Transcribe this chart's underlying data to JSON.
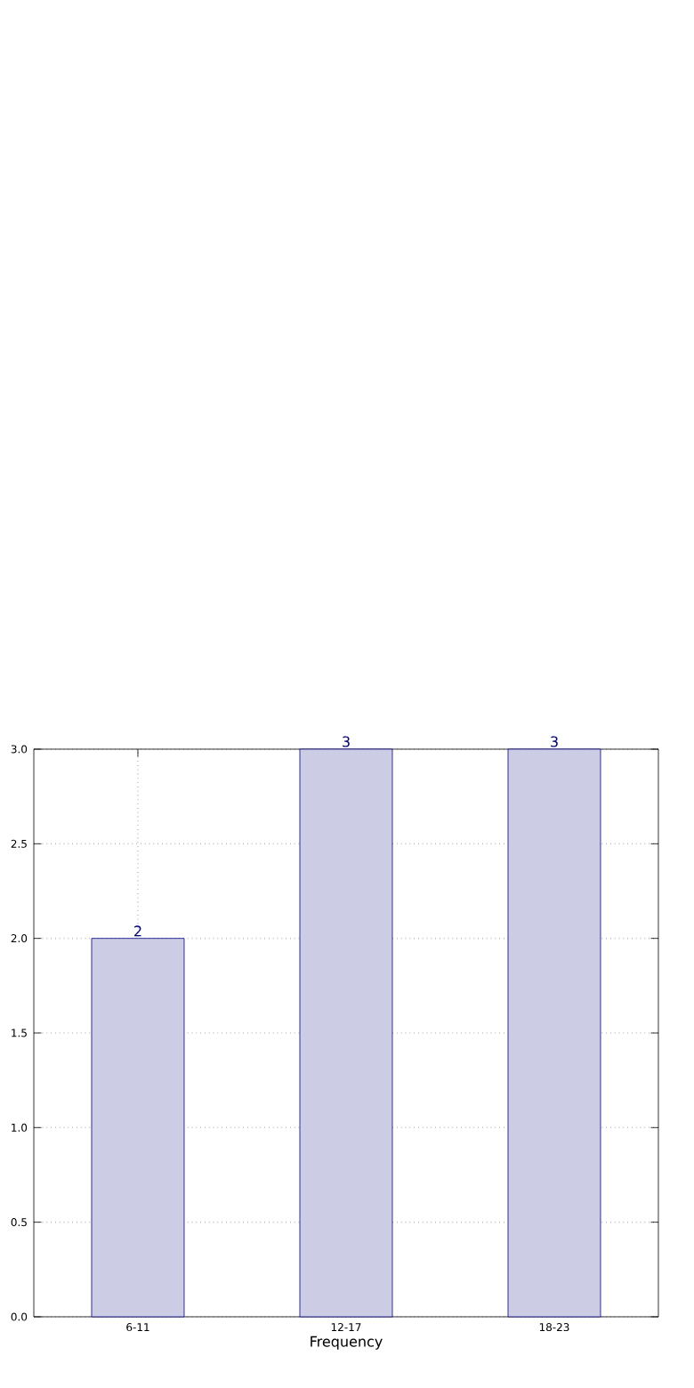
{
  "chart_data": {
    "type": "bar",
    "xlabel": "Frequency",
    "categories": [
      "6-11",
      "12-17",
      "18-23"
    ],
    "values": [
      2,
      3,
      3
    ],
    "color": "#cccce4",
    "ylim": [
      0,
      3
    ],
    "yticks": [
      "0.0",
      "0.5",
      "1.0",
      "1.5",
      "2.0",
      "2.5",
      "3.0"
    ],
    "grid": true,
    "data_labels": true
  }
}
